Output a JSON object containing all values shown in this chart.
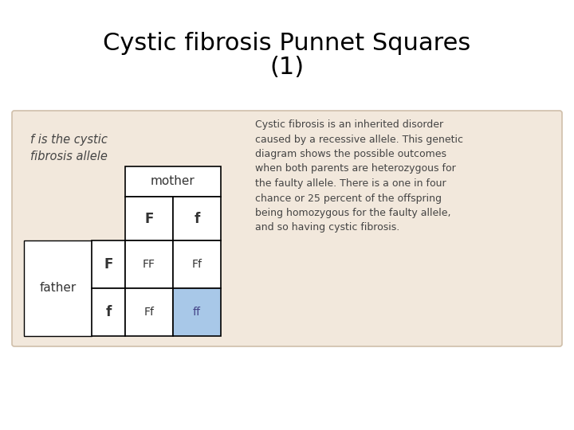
{
  "title_line1": "Cystic fibrosis Punnet Squares",
  "title_line2": "(1)",
  "title_fontsize": 22,
  "bg_color": "#ffffff",
  "panel_bg": "#f2e8dc",
  "panel_border": "#d0bfaa",
  "legend_text": "f is the cystic\nfibrosis allele",
  "mother_label": "mother",
  "father_label": "father",
  "col_headers": [
    "F",
    "f"
  ],
  "row_headers": [
    "F",
    "f"
  ],
  "cells": [
    [
      "FF",
      "Ff"
    ],
    [
      "Ff",
      "ff"
    ]
  ],
  "cell_colors": [
    [
      "#ffffff",
      "#ffffff"
    ],
    [
      "#ffffff",
      "#a8c8e8"
    ]
  ],
  "text_color_cells": [
    [
      "#333333",
      "#333333"
    ],
    [
      "#333333",
      "#444488"
    ]
  ],
  "description_text": "Cystic fibrosis is an inherited disorder\ncaused by a recessive allele. This genetic\ndiagram shows the possible outcomes\nwhen both parents are heterozygous for\nthe faulty allele. There is a one in four\nchance or 25 percent of the offspring\nbeing homozygous for the faulty allele,\nand so having cystic fibrosis.",
  "description_fontsize": 9.0,
  "table_text_color": "#333333",
  "border_color": "#000000",
  "cell_text_fontsize": 10,
  "header_fontsize": 11
}
